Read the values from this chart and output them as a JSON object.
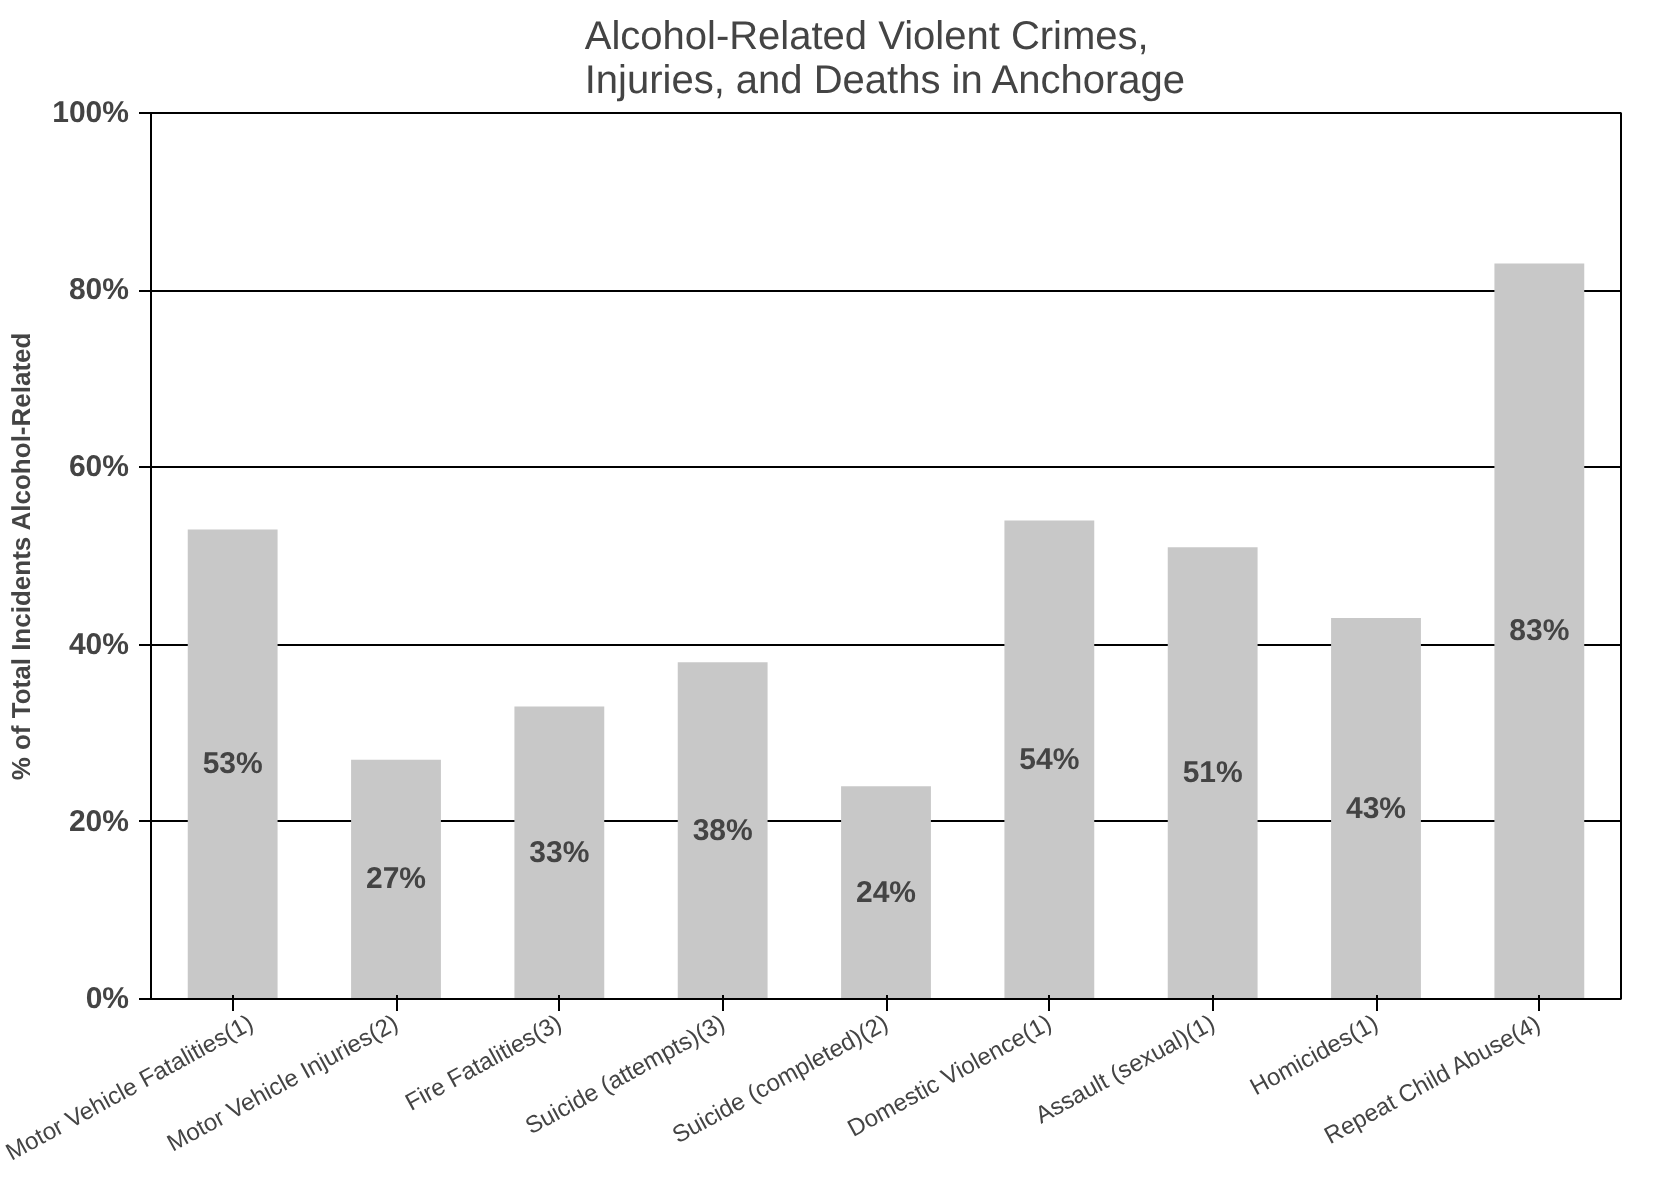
{
  "chart_data": {
    "type": "bar",
    "title": "Alcohol-Related Violent Crimes, Injuries, and Deaths in Anchorage",
    "ylabel": "% of Total Incidents Alcohol-Related",
    "categories": [
      "Motor Vehicle Fatalities(1)",
      "Motor Vehicle Injuries(2)",
      "Fire Fatalities(3)",
      "Suicide (attempts)(3)",
      "Suicide (completed)(2)",
      "Domestic Violence(1)",
      "Assault (sexual)(1)",
      "Homicides(1)",
      "Repeat Child Abuse(4)"
    ],
    "values": [
      53,
      27,
      33,
      38,
      24,
      54,
      51,
      43,
      83
    ],
    "color": "#c8c8c8",
    "value_labels": [
      "53%",
      "27%",
      "33%",
      "38%",
      "24%",
      "54%",
      "51%",
      "43%",
      "83%"
    ],
    "ylim": [
      0,
      100
    ],
    "yticks": [
      {
        "value": 0,
        "label": "0%"
      },
      {
        "value": 20,
        "label": "20%"
      },
      {
        "value": 40,
        "label": "40%"
      },
      {
        "value": 60,
        "label": "60%"
      },
      {
        "value": 80,
        "label": "80%"
      },
      {
        "value": 100,
        "label": "100%"
      }
    ],
    "grid": "y"
  }
}
